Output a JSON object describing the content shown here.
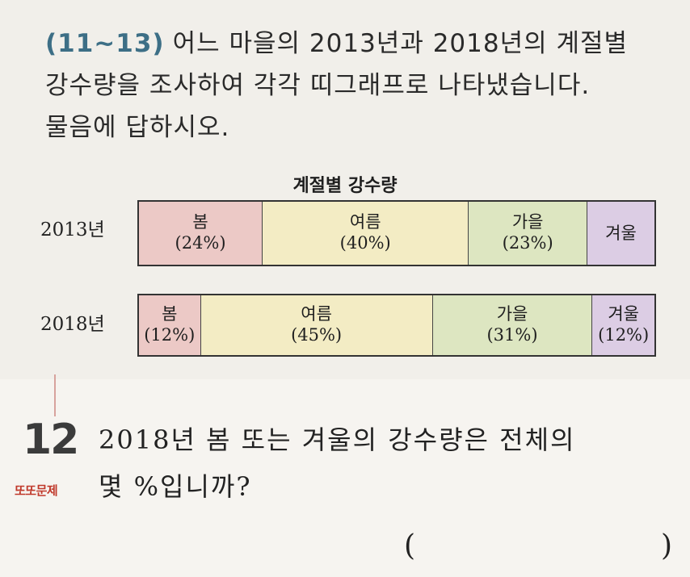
{
  "intro": {
    "range": "(11~13)",
    "lines": [
      "어느 마을의 2013년과 2018년의 계절별",
      "강수량을 조사하여 각각 띠그래프로 나타냈습니다.",
      "물음에 답하시오."
    ]
  },
  "chart_data": {
    "type": "bar",
    "title": "계절별 강수량",
    "categories": [
      "2013년",
      "2018년"
    ],
    "series": [
      {
        "name": "봄",
        "values": [
          24,
          12
        ],
        "labels": [
          "(24%)",
          "(12%)"
        ],
        "color": "#ecc9c6"
      },
      {
        "name": "여름",
        "values": [
          40,
          45
        ],
        "labels": [
          "(40%)",
          "(45%)"
        ],
        "color": "#f3ecc4"
      },
      {
        "name": "가을",
        "values": [
          23,
          31
        ],
        "labels": [
          "(23%)",
          "(31%)"
        ],
        "color": "#dde6c1"
      },
      {
        "name": "겨울",
        "values": [
          13,
          12
        ],
        "labels": [
          "",
          "(12%)"
        ],
        "color": "#dccde4"
      }
    ],
    "unit": "%"
  },
  "question": {
    "number": "12",
    "badge": "또또문제",
    "lines": [
      "2018년 봄 또는 겨울의 강수량은 전체의",
      "몇 %입니까?"
    ],
    "open_paren": "(",
    "close_paren": ")"
  }
}
